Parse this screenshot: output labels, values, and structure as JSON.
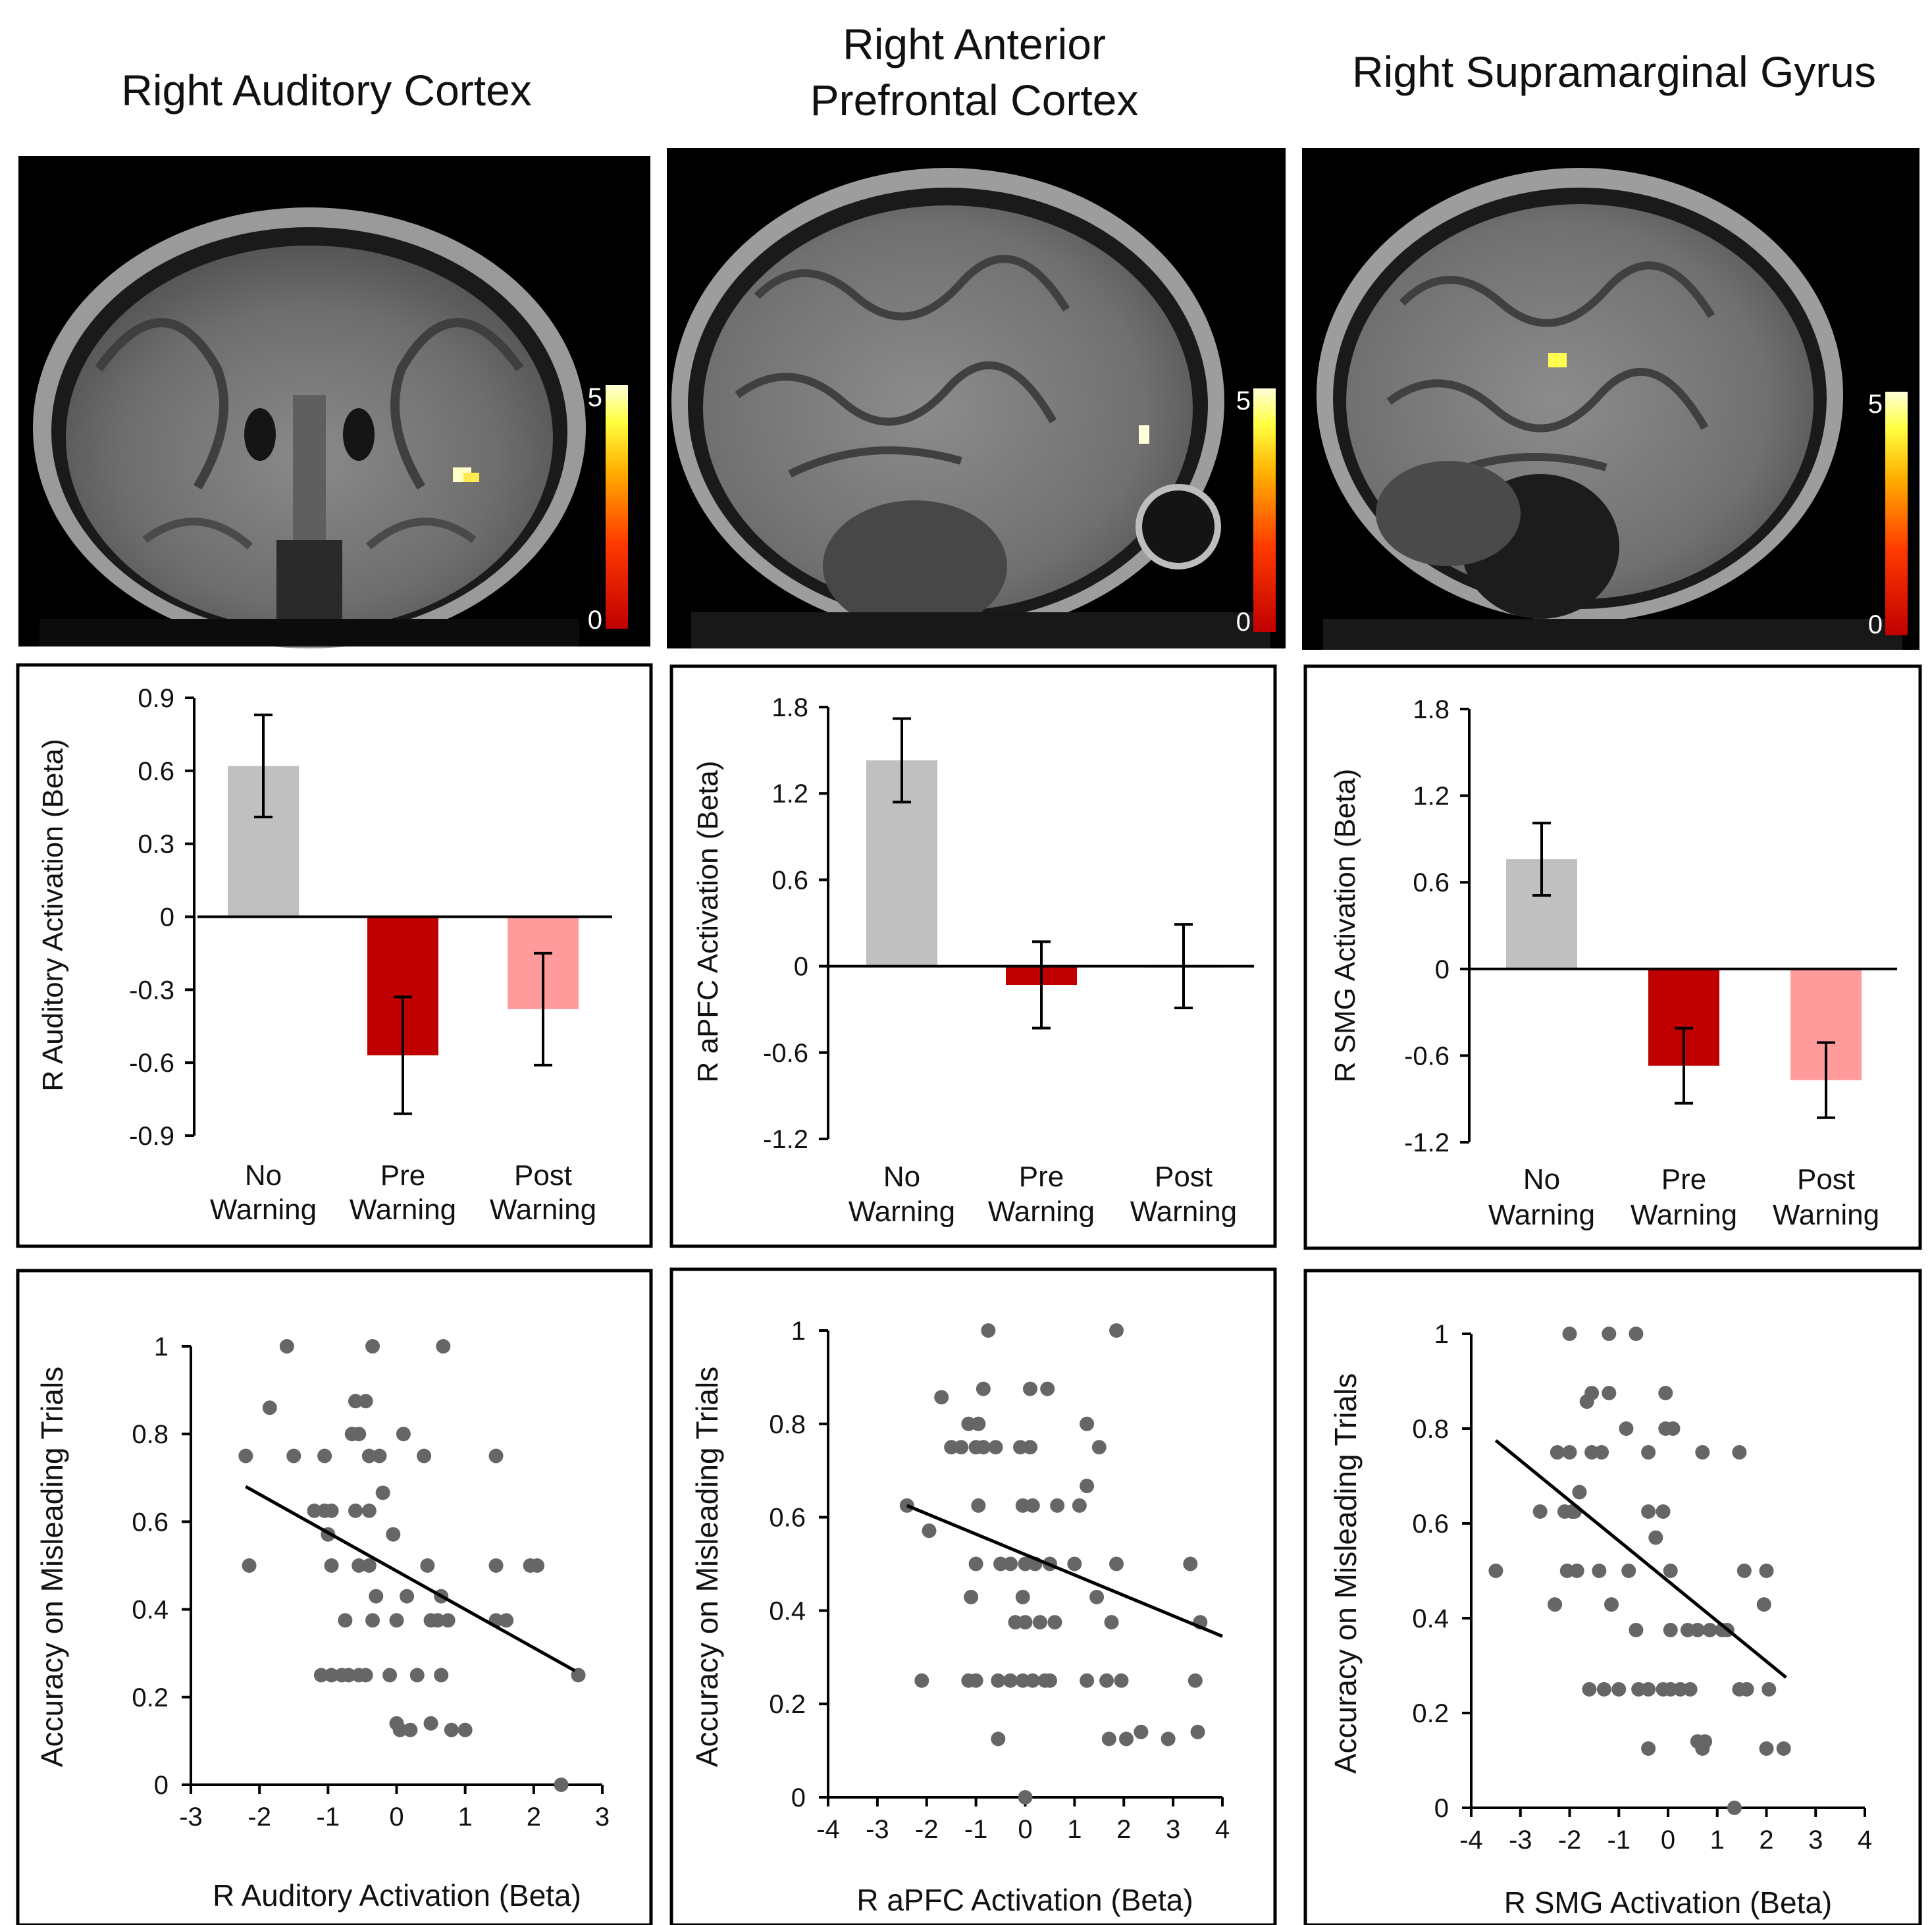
{
  "columns": [
    {
      "title_lines": [
        "Right Auditory Cortex"
      ]
    },
    {
      "title_lines": [
        "Right Anterior",
        "Prefrontal Cortex"
      ]
    },
    {
      "title_lines": [
        "Right Supramarginal Gyrus"
      ]
    }
  ],
  "brain_images": [
    {
      "view": "coronal",
      "colorbar": {
        "max_label": "5",
        "min_label": "0"
      }
    },
    {
      "view": "sagittal",
      "colorbar": {
        "max_label": "5",
        "min_label": "0"
      }
    },
    {
      "view": "sagittal",
      "colorbar": {
        "max_label": "5",
        "min_label": "0"
      }
    }
  ],
  "colors": {
    "no_warning": "#c0c0c0",
    "pre_warning": "#c00000",
    "post_warning": "#ff9b9b",
    "scatter_point": "#666666",
    "fit_line": "#000000"
  },
  "chart_data": [
    {
      "type": "bar",
      "categories": [
        [
          "No",
          "Warning"
        ],
        [
          "Pre",
          "Warning"
        ],
        [
          "Post",
          "Warning"
        ]
      ],
      "values": [
        0.62,
        -0.57,
        -0.38
      ],
      "errors": [
        0.21,
        0.24,
        0.23
      ],
      "ylabel": "R Auditory Activation (Beta)",
      "ylim": [
        -0.9,
        0.9
      ],
      "yticks": [
        0.9,
        0.6,
        0.3,
        0,
        -0.3,
        -0.6,
        -0.9
      ],
      "ytick_labels": [
        "0.9",
        "0.6",
        "0.3",
        "0",
        "-0.3",
        "-0.6",
        "-0.9"
      ]
    },
    {
      "type": "bar",
      "categories": [
        [
          "No",
          "Warning"
        ],
        [
          "Pre",
          "Warning"
        ],
        [
          "Post",
          "Warning"
        ]
      ],
      "values": [
        1.43,
        -0.13,
        0.0
      ],
      "errors": [
        0.29,
        0.3,
        0.29
      ],
      "ylabel": "R aPFC Activation (Beta)",
      "ylim": [
        -1.2,
        1.8
      ],
      "yticks": [
        1.8,
        1.2,
        0.6,
        0,
        -0.6,
        -1.2
      ],
      "ytick_labels": [
        "1.8",
        "1.2",
        "0.6",
        "0",
        "-0.6",
        "-1.2"
      ]
    },
    {
      "type": "bar",
      "categories": [
        [
          "No",
          "Warning"
        ],
        [
          "Pre",
          "Warning"
        ],
        [
          "Post",
          "Warning"
        ]
      ],
      "values": [
        0.76,
        -0.67,
        -0.77
      ],
      "errors": [
        0.25,
        0.26,
        0.26
      ],
      "ylabel": "R SMG Activation (Beta)",
      "ylim": [
        -1.2,
        1.8
      ],
      "yticks": [
        1.8,
        1.2,
        0.6,
        0,
        -0.6,
        -1.2
      ],
      "ytick_labels": [
        "1.8",
        "1.2",
        "0.6",
        "0",
        "-0.6",
        "-1.2"
      ]
    },
    {
      "type": "scatter",
      "xlabel": "R Auditory Activation (Beta)",
      "ylabel": "Accuracy on Misleading Trials",
      "xlim": [
        -3,
        3
      ],
      "ylim": [
        0,
        1
      ],
      "xticks": [
        -3,
        -2,
        -1,
        0,
        1,
        2,
        3
      ],
      "xtick_labels": [
        "-3",
        "-2",
        "-1",
        "0",
        "1",
        "2",
        "3"
      ],
      "yticks": [
        0,
        0.2,
        0.4,
        0.6,
        0.8,
        1
      ],
      "ytick_labels": [
        "0",
        "0.2",
        "0.4",
        "0.6",
        "0.8",
        "1"
      ],
      "fit_line": [
        [
          -2.2,
          0.68
        ],
        [
          2.6,
          0.26
        ]
      ],
      "points": [
        [
          -1.6,
          1
        ],
        [
          -0.35,
          1
        ],
        [
          0.68,
          1
        ],
        [
          -1.85,
          0.86
        ],
        [
          -0.6,
          0.875
        ],
        [
          -0.45,
          0.875
        ],
        [
          -2.2,
          0.75
        ],
        [
          -1.5,
          0.75
        ],
        [
          -1.05,
          0.75
        ],
        [
          -0.4,
          0.75
        ],
        [
          -0.25,
          0.75
        ],
        [
          0.4,
          0.75
        ],
        [
          1.45,
          0.75
        ],
        [
          -0.65,
          0.8
        ],
        [
          -0.55,
          0.8
        ],
        [
          0.1,
          0.8
        ],
        [
          -1.2,
          0.625
        ],
        [
          -1.05,
          0.625
        ],
        [
          -0.95,
          0.625
        ],
        [
          -0.6,
          0.625
        ],
        [
          -0.4,
          0.625
        ],
        [
          -0.2,
          0.666
        ],
        [
          -1.0,
          0.571
        ],
        [
          -0.05,
          0.571
        ],
        [
          -2.15,
          0.5
        ],
        [
          -0.95,
          0.5
        ],
        [
          -0.55,
          0.5
        ],
        [
          -0.4,
          0.5
        ],
        [
          0.45,
          0.5
        ],
        [
          1.45,
          0.5
        ],
        [
          1.95,
          0.5
        ],
        [
          2.05,
          0.5
        ],
        [
          -0.3,
          0.43
        ],
        [
          0.15,
          0.43
        ],
        [
          0.65,
          0.43
        ],
        [
          -0.75,
          0.375
        ],
        [
          -0.35,
          0.375
        ],
        [
          0.0,
          0.375
        ],
        [
          0.5,
          0.375
        ],
        [
          0.6,
          0.375
        ],
        [
          0.75,
          0.375
        ],
        [
          1.45,
          0.375
        ],
        [
          1.6,
          0.375
        ],
        [
          -1.1,
          0.25
        ],
        [
          -0.95,
          0.25
        ],
        [
          -0.8,
          0.25
        ],
        [
          -0.7,
          0.25
        ],
        [
          -0.55,
          0.25
        ],
        [
          -0.45,
          0.25
        ],
        [
          -0.1,
          0.25
        ],
        [
          0.3,
          0.25
        ],
        [
          0.65,
          0.25
        ],
        [
          2.65,
          0.25
        ],
        [
          0.0,
          0.14
        ],
        [
          0.05,
          0.125
        ],
        [
          0.2,
          0.125
        ],
        [
          0.5,
          0.14
        ],
        [
          0.8,
          0.125
        ],
        [
          1.0,
          0.125
        ],
        [
          2.4,
          0
        ]
      ]
    },
    {
      "type": "scatter",
      "xlabel": "R aPFC Activation (Beta)",
      "ylabel": "Accuracy on Misleading Trials",
      "xlim": [
        -4,
        4
      ],
      "ylim": [
        0,
        1
      ],
      "xticks": [
        -4,
        -3,
        -2,
        -1,
        0,
        1,
        2,
        3,
        4
      ],
      "xtick_labels": [
        "-4",
        "-3",
        "-2",
        "-1",
        "0",
        "1",
        "2",
        "3",
        "4"
      ],
      "yticks": [
        0,
        0.2,
        0.4,
        0.6,
        0.8,
        1
      ],
      "ytick_labels": [
        "0",
        "0.2",
        "0.4",
        "0.6",
        "0.8",
        "1"
      ],
      "fit_line": [
        [
          -2.4,
          0.625
        ],
        [
          4.0,
          0.345
        ]
      ],
      "points": [
        [
          -0.75,
          1
        ],
        [
          1.85,
          1
        ],
        [
          -1.7,
          0.857
        ],
        [
          -0.85,
          0.875
        ],
        [
          0.1,
          0.875
        ],
        [
          0.45,
          0.875
        ],
        [
          -1.5,
          0.75
        ],
        [
          -1.3,
          0.75
        ],
        [
          -1.0,
          0.75
        ],
        [
          -0.85,
          0.75
        ],
        [
          -0.6,
          0.75
        ],
        [
          -0.1,
          0.75
        ],
        [
          0.1,
          0.75
        ],
        [
          1.5,
          0.75
        ],
        [
          -1.15,
          0.8
        ],
        [
          -0.95,
          0.8
        ],
        [
          1.25,
          0.8
        ],
        [
          1.25,
          0.667
        ],
        [
          -0.95,
          0.625
        ],
        [
          -0.05,
          0.625
        ],
        [
          0.15,
          0.625
        ],
        [
          0.65,
          0.625
        ],
        [
          1.1,
          0.625
        ],
        [
          -2.4,
          0.625
        ],
        [
          -1.95,
          0.571
        ],
        [
          -1.0,
          0.5
        ],
        [
          -0.5,
          0.5
        ],
        [
          -0.3,
          0.5
        ],
        [
          0.0,
          0.5
        ],
        [
          0.2,
          0.5
        ],
        [
          0.5,
          0.5
        ],
        [
          1.0,
          0.5
        ],
        [
          1.85,
          0.5
        ],
        [
          3.35,
          0.5
        ],
        [
          -1.1,
          0.429
        ],
        [
          -0.05,
          0.429
        ],
        [
          1.45,
          0.429
        ],
        [
          -0.2,
          0.375
        ],
        [
          0.0,
          0.375
        ],
        [
          0.3,
          0.375
        ],
        [
          0.6,
          0.375
        ],
        [
          1.75,
          0.375
        ],
        [
          3.55,
          0.375
        ],
        [
          -2.1,
          0.25
        ],
        [
          -1.15,
          0.25
        ],
        [
          -1.0,
          0.25
        ],
        [
          -0.55,
          0.25
        ],
        [
          -0.3,
          0.25
        ],
        [
          -0.05,
          0.25
        ],
        [
          0.15,
          0.25
        ],
        [
          0.4,
          0.25
        ],
        [
          0.5,
          0.25
        ],
        [
          1.25,
          0.25
        ],
        [
          1.65,
          0.25
        ],
        [
          1.95,
          0.25
        ],
        [
          3.45,
          0.25
        ],
        [
          -0.55,
          0.125
        ],
        [
          1.7,
          0.125
        ],
        [
          2.05,
          0.125
        ],
        [
          2.35,
          0.14
        ],
        [
          2.9,
          0.125
        ],
        [
          3.5,
          0.14
        ],
        [
          0.0,
          0
        ]
      ]
    },
    {
      "type": "scatter",
      "xlabel": "R SMG Activation (Beta)",
      "ylabel": "Accuracy on Misleading Trials",
      "xlim": [
        -4,
        4
      ],
      "ylim": [
        0,
        1
      ],
      "xticks": [
        -4,
        -3,
        -2,
        -1,
        0,
        1,
        2,
        3,
        4
      ],
      "xtick_labels": [
        "-4",
        "-3",
        "-2",
        "-1",
        "0",
        "1",
        "2",
        "3",
        "4"
      ],
      "yticks": [
        0,
        0.2,
        0.4,
        0.6,
        0.8,
        1
      ],
      "ytick_labels": [
        "0",
        "0.2",
        "0.4",
        "0.6",
        "0.8",
        "1"
      ],
      "fit_line": [
        [
          -3.5,
          0.775
        ],
        [
          2.4,
          0.275
        ]
      ],
      "points": [
        [
          -2.0,
          1
        ],
        [
          -1.2,
          1
        ],
        [
          -0.65,
          1
        ],
        [
          -1.65,
          0.857
        ],
        [
          -1.55,
          0.875
        ],
        [
          -1.2,
          0.875
        ],
        [
          -0.05,
          0.875
        ],
        [
          -2.25,
          0.75
        ],
        [
          -2.0,
          0.75
        ],
        [
          -1.55,
          0.75
        ],
        [
          -1.35,
          0.75
        ],
        [
          -0.4,
          0.75
        ],
        [
          0.7,
          0.75
        ],
        [
          1.45,
          0.75
        ],
        [
          -0.85,
          0.8
        ],
        [
          -0.05,
          0.8
        ],
        [
          0.1,
          0.8
        ],
        [
          -1.8,
          0.666
        ],
        [
          -2.1,
          0.625
        ],
        [
          -2.6,
          0.625
        ],
        [
          -1.95,
          0.625
        ],
        [
          -1.9,
          0.625
        ],
        [
          -0.4,
          0.625
        ],
        [
          -0.1,
          0.625
        ],
        [
          -0.25,
          0.57
        ],
        [
          -3.5,
          0.5
        ],
        [
          -2.05,
          0.5
        ],
        [
          -1.85,
          0.5
        ],
        [
          -1.4,
          0.5
        ],
        [
          -0.8,
          0.5
        ],
        [
          0.05,
          0.5
        ],
        [
          1.55,
          0.5
        ],
        [
          2.0,
          0.5
        ],
        [
          -2.3,
          0.429
        ],
        [
          -1.15,
          0.429
        ],
        [
          1.95,
          0.429
        ],
        [
          -0.65,
          0.375
        ],
        [
          0.05,
          0.375
        ],
        [
          0.4,
          0.375
        ],
        [
          0.6,
          0.375
        ],
        [
          0.85,
          0.375
        ],
        [
          1.1,
          0.375
        ],
        [
          1.2,
          0.375
        ],
        [
          -1.6,
          0.25
        ],
        [
          -1.3,
          0.25
        ],
        [
          -1.0,
          0.25
        ],
        [
          -0.6,
          0.25
        ],
        [
          -0.4,
          0.25
        ],
        [
          -0.1,
          0.25
        ],
        [
          0.05,
          0.25
        ],
        [
          0.25,
          0.25
        ],
        [
          0.45,
          0.25
        ],
        [
          1.45,
          0.25
        ],
        [
          1.6,
          0.25
        ],
        [
          2.05,
          0.25
        ],
        [
          -0.4,
          0.125
        ],
        [
          0.6,
          0.14
        ],
        [
          0.7,
          0.125
        ],
        [
          0.75,
          0.14
        ],
        [
          2.0,
          0.125
        ],
        [
          2.35,
          0.125
        ],
        [
          1.35,
          0
        ]
      ]
    }
  ]
}
